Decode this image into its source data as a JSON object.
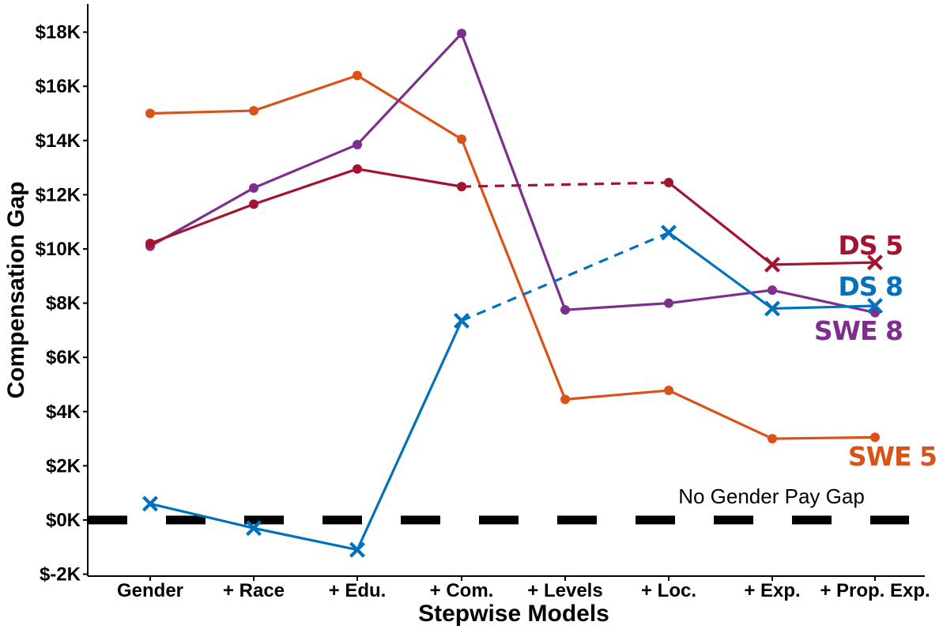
{
  "chart_data": {
    "type": "line",
    "xlabel": "Stepwise Models",
    "ylabel": "Compensation Gap",
    "categories": [
      "Gender",
      "+ Race",
      "+ Edu.",
      "+ Com.",
      "+ Levels",
      "+ Loc.",
      "+ Exp.",
      "+ Prop. Exp."
    ],
    "ylim": [
      -2000,
      19000
    ],
    "yticks": [
      -2000,
      0,
      2000,
      4000,
      6000,
      8000,
      10000,
      12000,
      14000,
      16000,
      18000
    ],
    "ytick_labels": [
      "$-2K",
      "$0K",
      "$2K",
      "$4K",
      "$6K",
      "$8K",
      "$10K",
      "$12K",
      "$14K",
      "$16K",
      "$18K"
    ],
    "reference_line": {
      "value": 0,
      "label": "No Gender Pay Gap",
      "color": "#000000"
    },
    "series": [
      {
        "name": "SWE 5",
        "color": "#D95319",
        "values": [
          15000,
          15100,
          16400,
          14050,
          4450,
          4780,
          3000,
          3050
        ],
        "markers": [
          "o",
          "o",
          "o",
          "o",
          "o",
          "o",
          "o",
          "o"
        ],
        "dashed_segments": []
      },
      {
        "name": "SWE 8",
        "color": "#7E2F8E",
        "values": [
          10100,
          12250,
          13850,
          17950,
          7750,
          8000,
          8480,
          7650
        ],
        "markers": [
          "o",
          "o",
          "o",
          "o",
          "o",
          "o",
          "o",
          "o"
        ],
        "dashed_segments": []
      },
      {
        "name": "DS 5",
        "color": "#A2142F",
        "values": [
          10200,
          11650,
          12950,
          12300,
          null,
          12450,
          9420,
          9500
        ],
        "markers": [
          "o",
          "o",
          "o",
          "o",
          "",
          "o",
          "x",
          "x"
        ],
        "dashed_segments": [
          3
        ]
      },
      {
        "name": "DS 8",
        "color": "#0072BD",
        "values": [
          600,
          -300,
          -1100,
          7350,
          null,
          10600,
          7800,
          7900
        ],
        "markers": [
          "x",
          "x",
          "x",
          "x",
          "",
          "x",
          "x",
          "x"
        ],
        "dashed_segments": [
          3
        ]
      }
    ],
    "grid": false,
    "legend": "inline labels at right"
  }
}
